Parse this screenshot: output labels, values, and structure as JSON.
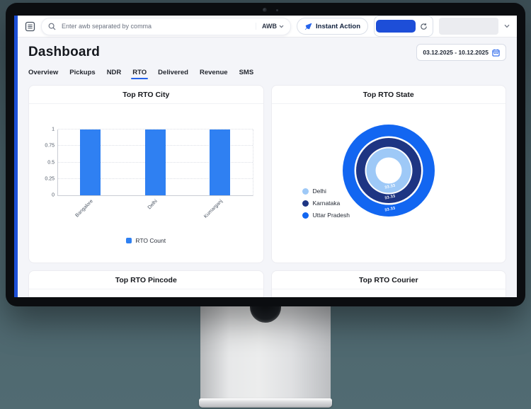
{
  "topbar": {
    "search_placeholder": "Enter awb separated by comma",
    "awb_label": "AWB",
    "instant_action_label": "Instant Action"
  },
  "page": {
    "title": "Dashboard",
    "date_range": "03.12.2025 - 10.12.2025"
  },
  "tabs": [
    {
      "label": "Overview",
      "active": false
    },
    {
      "label": "Pickups",
      "active": false
    },
    {
      "label": "NDR",
      "active": false
    },
    {
      "label": "RTO",
      "active": true
    },
    {
      "label": "Delivered",
      "active": false
    },
    {
      "label": "Revenue",
      "active": false
    },
    {
      "label": "SMS",
      "active": false
    }
  ],
  "cards": {
    "city": {
      "title": "Top RTO City"
    },
    "state": {
      "title": "Top RTO State"
    },
    "pincode": {
      "title": "Top RTO Pincode"
    },
    "courier": {
      "title": "Top RTO Courier"
    }
  },
  "chart_data": [
    {
      "type": "bar",
      "title": "Top RTO City",
      "categories": [
        "Bangalore",
        "Delhi",
        "Kumarganj"
      ],
      "values": [
        1,
        1,
        1
      ],
      "series_name": "RTO Count",
      "ylim": [
        0,
        1
      ],
      "ytick_labels": [
        "0",
        "0.25",
        "0.5",
        "0.75",
        "1"
      ],
      "yticks": [
        0,
        0.25,
        0.5,
        0.75,
        1
      ],
      "bar_color": "#2f80f2",
      "grid": true,
      "legend_position": "bottom"
    },
    {
      "type": "pie",
      "style": "concentric-rings",
      "title": "Top RTO State",
      "labels": [
        "Delhi",
        "Karnataka",
        "Uttar Pradesh"
      ],
      "values": [
        33.33,
        33.33,
        33.33
      ],
      "value_labels": [
        "33.33",
        "33.33",
        "33.33"
      ],
      "colors": [
        "#9ec9f7",
        "#1e3583",
        "#1266f1"
      ],
      "ring_order_outer_to_inner": [
        "Uttar Pradesh",
        "Karnataka",
        "Delhi"
      ],
      "legend_position": "left"
    }
  ],
  "colors": {
    "accent_blue": "#1d4ed8",
    "tab_underline": "#2563eb",
    "sidebar_strip": "#1d4fd7",
    "app_background": "#f4f5f9",
    "wall_background": "#4d666d"
  },
  "icons": {
    "menu": "list-lines-in-rounded-square",
    "search": "magnifier",
    "instant_action": "blue-slanted-pen",
    "refresh": "circular-arrows",
    "calendar": "blue-calendar",
    "chevron_down": "v-arrow"
  }
}
